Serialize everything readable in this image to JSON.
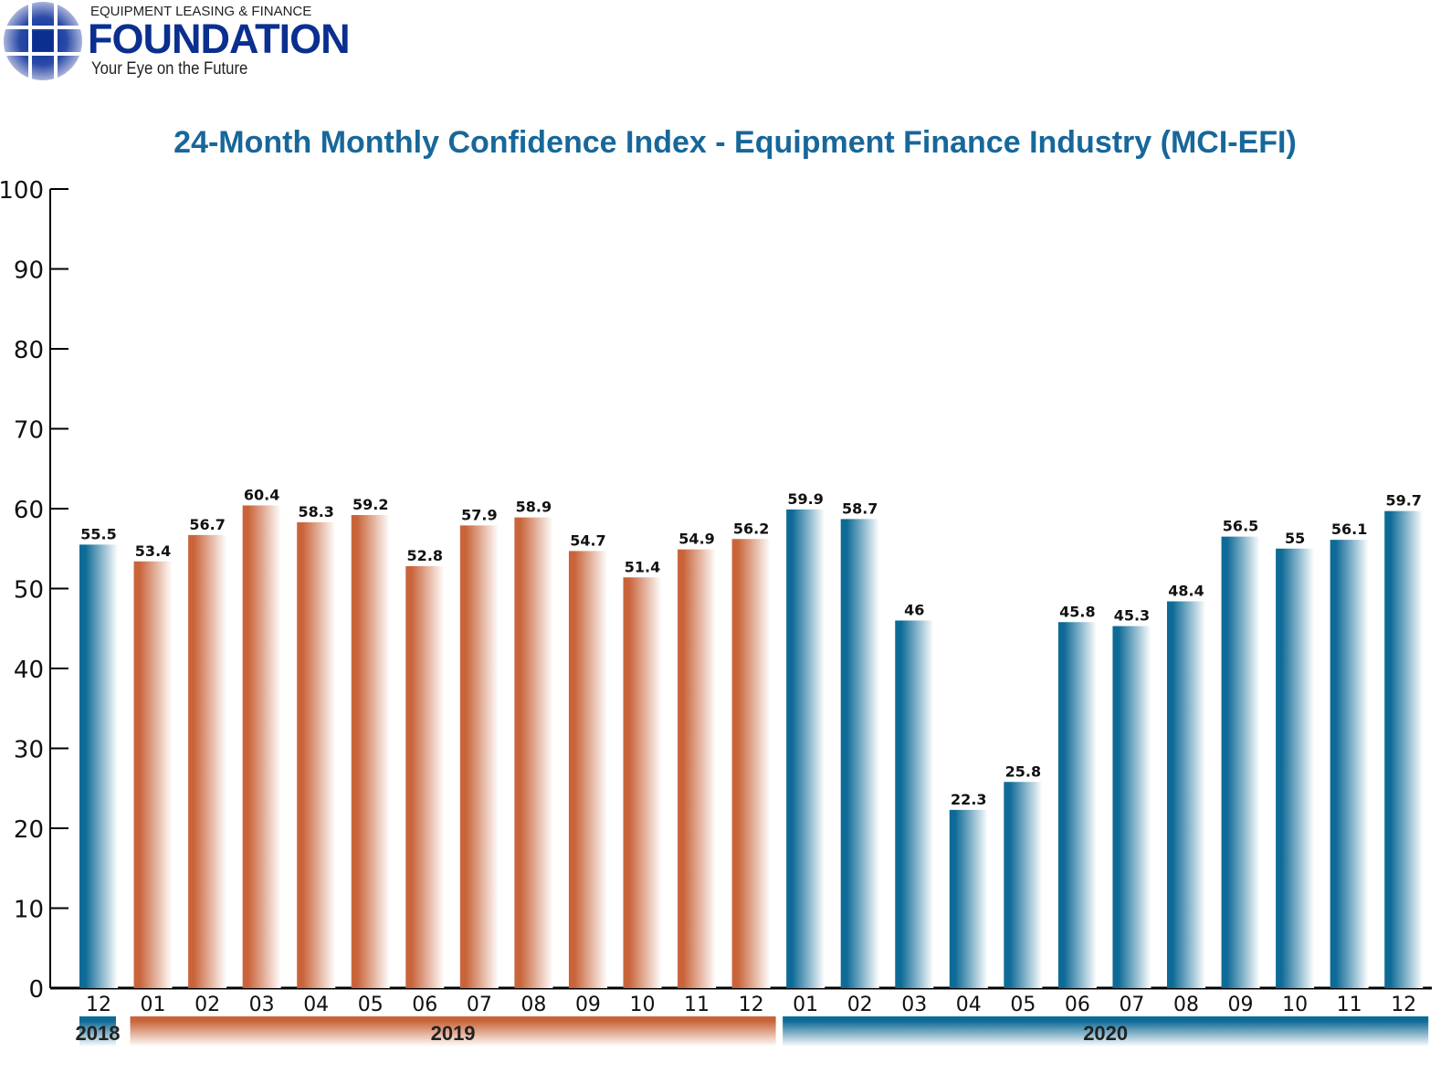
{
  "logo": {
    "line1": "EQUIPMENT LEASING & FINANCE",
    "line2": "FOUNDATION",
    "line3": "Your Eye on the Future"
  },
  "colors": {
    "2018": "#0e6a96",
    "2019": "#c9643a",
    "2020": "#0e6a96",
    "title": "#17679a"
  },
  "chart_data": {
    "type": "bar",
    "title": "24-Month Monthly Confidence Index - Equipment Finance Industry (MCI-EFI)",
    "xlabel": "",
    "ylabel": "",
    "ylim": [
      0,
      100
    ],
    "yticks": [
      0,
      10,
      20,
      30,
      40,
      50,
      60,
      70,
      80,
      90,
      100
    ],
    "grid": false,
    "categories": [
      "12",
      "01",
      "02",
      "03",
      "04",
      "05",
      "06",
      "07",
      "08",
      "09",
      "10",
      "11",
      "12",
      "01",
      "02",
      "03",
      "04",
      "05",
      "06",
      "07",
      "08",
      "09",
      "10",
      "11",
      "12"
    ],
    "years": [
      "2018",
      "2019",
      "2019",
      "2019",
      "2019",
      "2019",
      "2019",
      "2019",
      "2019",
      "2019",
      "2019",
      "2019",
      "2019",
      "2020",
      "2020",
      "2020",
      "2020",
      "2020",
      "2020",
      "2020",
      "2020",
      "2020",
      "2020",
      "2020",
      "2020"
    ],
    "values": [
      55.5,
      53.4,
      56.7,
      60.4,
      58.3,
      59.2,
      52.8,
      57.9,
      58.9,
      54.7,
      51.4,
      54.9,
      56.2,
      59.9,
      58.7,
      46,
      22.3,
      25.8,
      45.8,
      45.3,
      48.4,
      56.5,
      55,
      56.1,
      59.7
    ],
    "year_groups": [
      {
        "label": "2018",
        "from": 0,
        "to": 0
      },
      {
        "label": "2019",
        "from": 1,
        "to": 12
      },
      {
        "label": "2020",
        "from": 13,
        "to": 24
      }
    ]
  }
}
